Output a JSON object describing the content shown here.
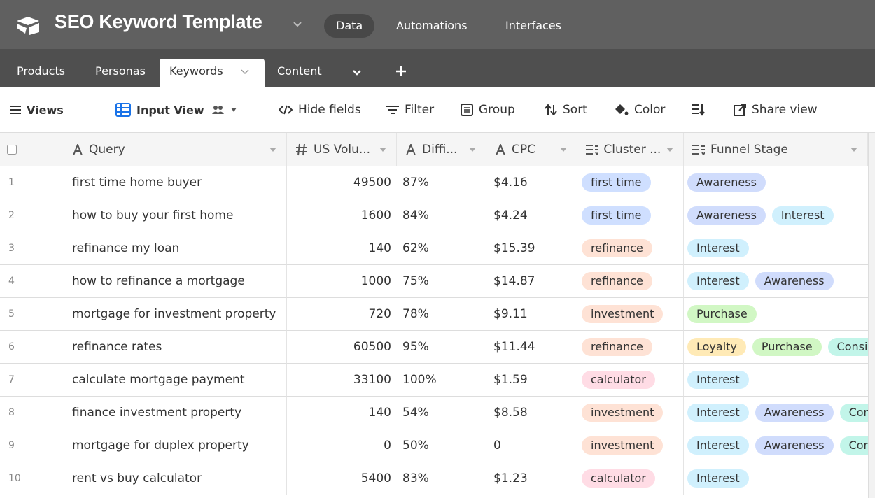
{
  "header": {
    "title": "SEO Keyword Template",
    "nav": [
      "Data",
      "Automations",
      "Interfaces"
    ]
  },
  "tabs": [
    "Products",
    "Personas",
    "Keywords",
    "Content"
  ],
  "toolbar": [
    "Views",
    "Input View",
    "Hide fields",
    "Filter",
    "Group",
    "Sort",
    "Color",
    "Share view"
  ],
  "table": {
    "columns": [
      "Query",
      "US Volu...",
      "Diffi...",
      "CPC",
      "Cluster ...",
      "Funnel Stage"
    ],
    "rows": [
      {
        "num": "1",
        "query": "first time home buyer",
        "volume": "49500",
        "difficulty": "87%",
        "cpc": "$4.16",
        "cluster": {
          "text": "first time",
          "color": "#cfdfff"
        },
        "funnel": [
          {
            "text": "Awareness",
            "color": "#d0dcfc"
          }
        ]
      },
      {
        "num": "2",
        "query": "how to buy your first home",
        "volume": "1600",
        "difficulty": "84%",
        "cpc": "$4.24",
        "cluster": {
          "text": "first time",
          "color": "#cfdfff"
        },
        "funnel": [
          {
            "text": "Awareness",
            "color": "#d0dcfc"
          },
          {
            "text": "Interest",
            "color": "#d0f0fd"
          }
        ]
      },
      {
        "num": "3",
        "query": "refinance my loan",
        "volume": "140",
        "difficulty": "62%",
        "cpc": "$15.39",
        "cluster": {
          "text": "refinance",
          "color": "#fee2d5"
        },
        "funnel": [
          {
            "text": "Interest",
            "color": "#d0f0fd"
          }
        ]
      },
      {
        "num": "4",
        "query": "how to refinance a mortgage",
        "volume": "1000",
        "difficulty": "75%",
        "cpc": "$14.87",
        "cluster": {
          "text": "refinance",
          "color": "#fee2d5"
        },
        "funnel": [
          {
            "text": "Interest",
            "color": "#d0f0fd"
          },
          {
            "text": "Awareness",
            "color": "#d0dcfc"
          }
        ]
      },
      {
        "num": "5",
        "query": "mortgage for investment property",
        "volume": "720",
        "difficulty": "78%",
        "cpc": "$9.11",
        "cluster": {
          "text": "investment",
          "color": "#fee2d5"
        },
        "funnel": [
          {
            "text": "Purchase",
            "color": "#d1f7c4"
          }
        ]
      },
      {
        "num": "6",
        "query": "refinance rates",
        "volume": "60500",
        "difficulty": "95%",
        "cpc": "$11.44",
        "cluster": {
          "text": "refinance",
          "color": "#fee2d5"
        },
        "funnel": [
          {
            "text": "Loyalty",
            "color": "#ffeab6"
          },
          {
            "text": "Purchase",
            "color": "#d1f7c4"
          },
          {
            "text": "Consi",
            "color": "#c2f5e9"
          }
        ]
      },
      {
        "num": "7",
        "query": "calculate mortgage payment",
        "volume": "33100",
        "difficulty": "100%",
        "cpc": "$1.59",
        "cluster": {
          "text": "calculator",
          "color": "#ffdce5"
        },
        "funnel": [
          {
            "text": "Interest",
            "color": "#d0f0fd"
          }
        ]
      },
      {
        "num": "8",
        "query": "finance investment property",
        "volume": "140",
        "difficulty": "54%",
        "cpc": "$8.58",
        "cluster": {
          "text": "investment",
          "color": "#fee2d5"
        },
        "funnel": [
          {
            "text": "Interest",
            "color": "#d0f0fd"
          },
          {
            "text": "Awareness",
            "color": "#d0dcfc"
          },
          {
            "text": "Con",
            "color": "#c2f5e9"
          }
        ]
      },
      {
        "num": "9",
        "query": "mortgage for duplex property",
        "volume": "0",
        "difficulty": "50%",
        "cpc": "0",
        "cluster": {
          "text": "investment",
          "color": "#fee2d5"
        },
        "funnel": [
          {
            "text": "Interest",
            "color": "#d0f0fd"
          },
          {
            "text": "Awareness",
            "color": "#d0dcfc"
          },
          {
            "text": "Con",
            "color": "#c2f5e9"
          }
        ]
      },
      {
        "num": "10",
        "query": "rent vs buy calculator",
        "volume": "5400",
        "difficulty": "83%",
        "cpc": "$1.23",
        "cluster": {
          "text": "calculator",
          "color": "#ffdce5"
        },
        "funnel": [
          {
            "text": "Interest",
            "color": "#d0f0fd"
          }
        ]
      }
    ]
  }
}
